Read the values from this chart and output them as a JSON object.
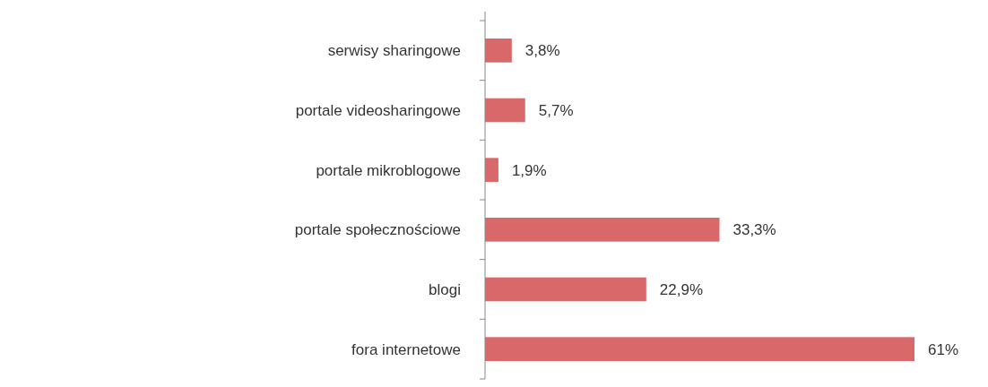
{
  "chart_data": {
    "type": "bar",
    "orientation": "horizontal",
    "categories": [
      "serwisy sharingowe",
      "portale videosharingowe",
      "portale mikroblogowe",
      "portale społecznościowe",
      "blogi",
      "fora internetowe"
    ],
    "values": [
      3.8,
      5.7,
      1.9,
      33.3,
      22.9,
      61
    ],
    "value_labels": [
      "3,8%",
      "5,7%",
      "1,9%",
      "33,3%",
      "22,9%",
      "61%"
    ],
    "color": "#d9686a"
  }
}
